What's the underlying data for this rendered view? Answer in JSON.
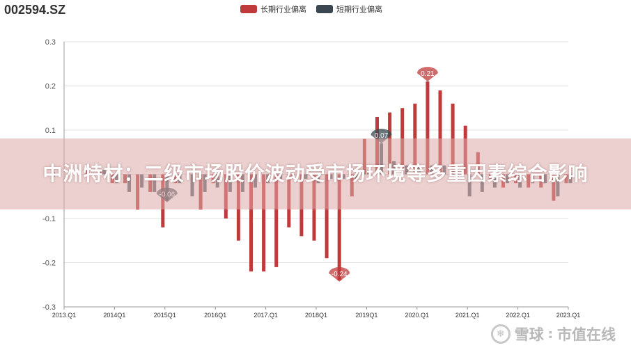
{
  "header": {
    "ticker": "002594.SZ"
  },
  "banner": {
    "text": "中洲特材：二级市场股价波动受市场环境等多重因素综合影响"
  },
  "watermark": {
    "brand": "雪球",
    "separator": ":",
    "slogan": "市值在线",
    "icon": "snowball-icon"
  },
  "colors": {
    "long": "#c0393b",
    "short": "#3a4750",
    "grid": "#e0e0e0",
    "axis": "#555555"
  },
  "chart_data": {
    "type": "bar",
    "legend": [
      "长期行业偏离",
      "短期行业偏离"
    ],
    "legend_position": "top-center",
    "grid": true,
    "ylim": [
      -0.3,
      0.3
    ],
    "yticks": [
      "0.3",
      "0.2",
      "0.1",
      "0",
      "-0.1",
      "-0.2",
      "-0.3"
    ],
    "categories": [
      "2013.Q1",
      "2013.Q2",
      "2013.Q3",
      "2013.Q4",
      "2014Q1",
      "2014Q2",
      "2014Q3",
      "2014Q4",
      "2015Q1",
      "2015Q2",
      "2015Q3",
      "2015Q4",
      "2016Q1",
      "2016Q2",
      "2016Q3",
      "2016Q4",
      "2017.Q1",
      "2017.Q2",
      "2017.Q3",
      "2017.Q4",
      "2018Q1",
      "2018Q2",
      "2018Q3",
      "2018Q4",
      "2019Q1",
      "2019Q2",
      "2019Q3",
      "2019Q4",
      "2020.Q1",
      "2020.Q2",
      "2020.Q3",
      "2020.Q4",
      "2021.Q1",
      "2021.Q2",
      "2021.Q3",
      "2021.Q4",
      "2022.Q1",
      "2022.Q2",
      "2022.Q3",
      "2022.Q4",
      "2023.Q1"
    ],
    "xtick_labels": [
      "2013.Q1",
      "2014Q1",
      "2015Q1",
      "2016Q1",
      "2017.Q1",
      "2018Q1",
      "2019Q1",
      "2020.Q1",
      "2021.Q1",
      "2022.Q1",
      "2023.Q1"
    ],
    "xtick_every": 4,
    "series": [
      {
        "name": "长期行业偏离",
        "values": [
          0.0,
          0.01,
          0.01,
          0.01,
          -0.02,
          -0.02,
          -0.08,
          -0.04,
          -0.12,
          -0.02,
          0.0,
          -0.08,
          -0.02,
          -0.1,
          -0.15,
          -0.22,
          -0.22,
          -0.21,
          -0.12,
          -0.14,
          -0.15,
          -0.19,
          -0.24,
          -0.05,
          0.08,
          0.13,
          0.14,
          0.15,
          0.16,
          0.21,
          0.19,
          0.16,
          0.11,
          0.05,
          -0.01,
          -0.03,
          -0.02,
          -0.03,
          -0.03,
          -0.06,
          -0.02
        ]
      },
      {
        "name": "短期行业偏离",
        "values": [
          0.0,
          0.0,
          0.0,
          0.01,
          -0.02,
          -0.04,
          -0.03,
          -0.04,
          -0.06,
          -0.02,
          -0.05,
          -0.04,
          -0.03,
          -0.04,
          -0.04,
          -0.03,
          -0.02,
          -0.01,
          -0.01,
          -0.01,
          -0.02,
          -0.01,
          -0.01,
          -0.01,
          0.01,
          0.07,
          0.03,
          0.02,
          0.02,
          0.02,
          0.02,
          -0.01,
          -0.05,
          -0.04,
          -0.03,
          -0.02,
          -0.03,
          -0.02,
          -0.02,
          -0.05,
          -0.02
        ]
      }
    ],
    "markers": [
      {
        "series": 0,
        "index": 29,
        "label": "0.21"
      },
      {
        "series": 0,
        "index": 22,
        "label": "-0.24"
      },
      {
        "series": 1,
        "index": 25,
        "label": "0.07"
      },
      {
        "series": 1,
        "index": 8,
        "label": "-0.06"
      }
    ]
  }
}
